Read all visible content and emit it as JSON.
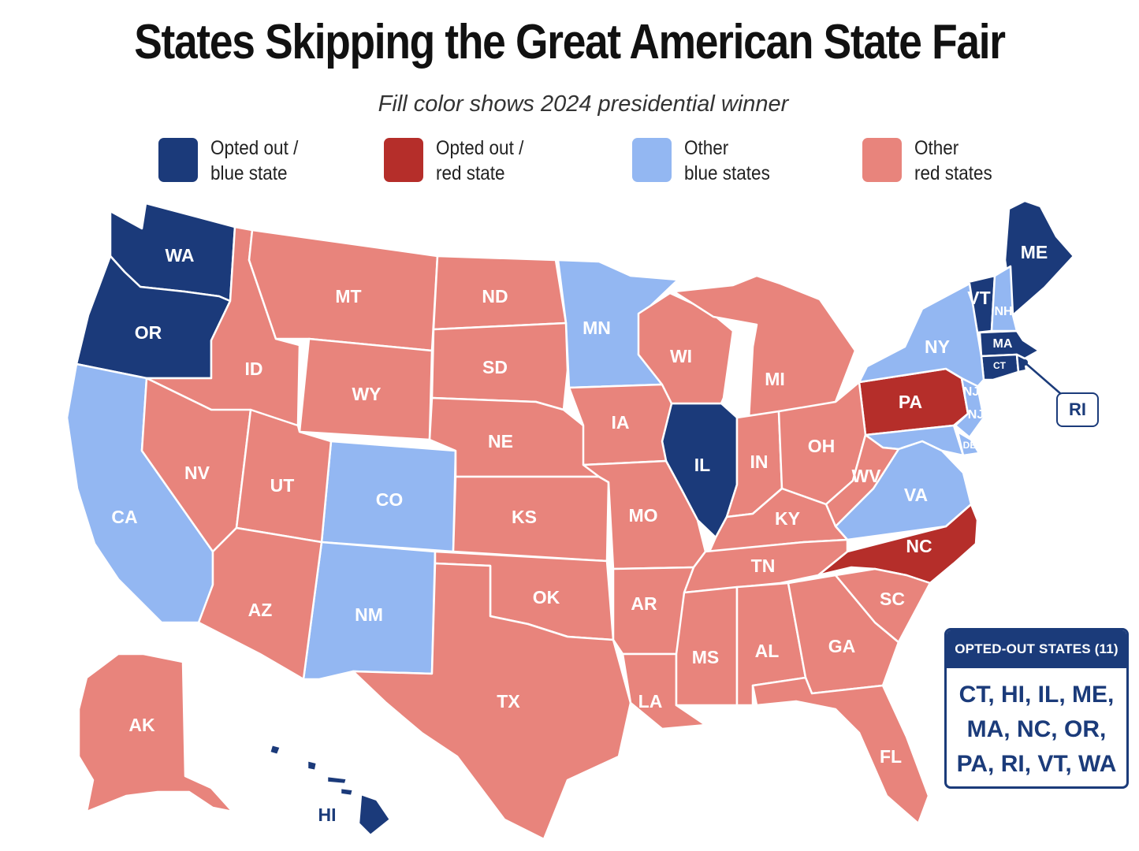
{
  "title": "States Skipping the Great American State Fair",
  "subtitle": "Fill color shows 2024 presidential winner",
  "colors": {
    "opted_blue": "#1b3a7a",
    "opted_red": "#b52e2a",
    "other_blue": "#93b7f2",
    "other_red": "#e8847c"
  },
  "legend": [
    {
      "line1": "Opted out /",
      "line2": "blue state",
      "color": "#1b3a7a"
    },
    {
      "line1": "Opted out /",
      "line2": "red state",
      "color": "#b52e2a"
    },
    {
      "line1": "Other",
      "line2": "blue states",
      "color": "#93b7f2"
    },
    {
      "line1": "Other",
      "line2": "red states",
      "color": "#e8847c"
    }
  ],
  "states": {
    "WA": "WA",
    "OR": "OR",
    "CA": "CA",
    "NV": "NV",
    "ID": "ID",
    "MT": "MT",
    "WY": "WY",
    "UT": "UT",
    "AZ": "AZ",
    "CO": "CO",
    "NM": "NM",
    "ND": "ND",
    "SD": "SD",
    "NE": "NE",
    "KS": "KS",
    "OK": "OK",
    "TX": "TX",
    "MN": "MN",
    "IA": "IA",
    "MO": "MO",
    "AR": "AR",
    "LA": "LA",
    "WI": "WI",
    "IL": "IL",
    "MI": "MI",
    "IN": "IN",
    "OH": "OH",
    "KY": "KY",
    "TN": "TN",
    "MS": "MS",
    "AL": "AL",
    "GA": "GA",
    "FL": "FL",
    "SC": "SC",
    "NC": "NC",
    "VA": "VA",
    "WV": "WV",
    "PA": "PA",
    "NY": "NY",
    "VT": "VT",
    "NH": "NH",
    "ME": "ME",
    "MA": "MA",
    "CT": "CT",
    "RI": "RI",
    "NJ": "NJ",
    "DE": "DE",
    "AK": "AK",
    "HI": "HI"
  },
  "opted_out_box": {
    "header": "OPTED-OUT STATES (11)",
    "lines": [
      "CT, HI, IL, ME,",
      "MA, NC, OR,",
      "PA, RI, VT, WA"
    ]
  }
}
